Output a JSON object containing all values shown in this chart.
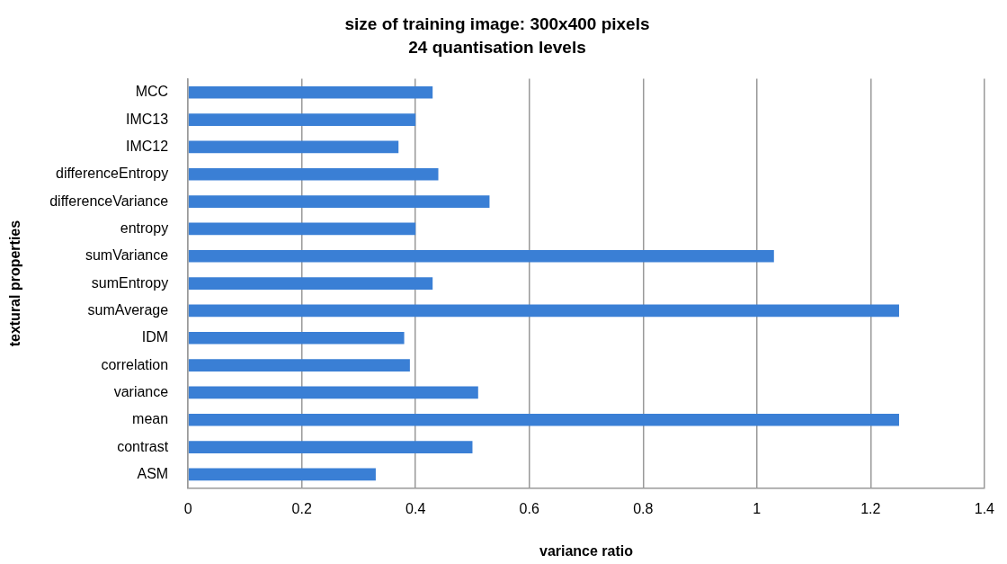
{
  "chart_data": {
    "type": "bar",
    "orientation": "horizontal",
    "title": "size of training image: 300x400 pixels",
    "subtitle": "24 quantisation levels",
    "xlabel": "variance ratio",
    "ylabel": "textural properties",
    "categories": [
      "MCC",
      "IMC13",
      "IMC12",
      "differenceEntropy",
      "differenceVariance",
      "entropy",
      "sumVariance",
      "sumEntropy",
      "sumAverage",
      "IDM",
      "correlation",
      "variance",
      "mean",
      "contrast",
      "ASM"
    ],
    "values": [
      0.43,
      0.4,
      0.37,
      0.44,
      0.53,
      0.4,
      1.03,
      0.43,
      1.25,
      0.38,
      0.39,
      0.51,
      1.25,
      0.5,
      0.33
    ],
    "color": "#3a7fd5",
    "xlim": [
      0,
      1.4
    ],
    "xticks": [
      0,
      0.2,
      0.4,
      0.6,
      0.8,
      1,
      1.2,
      1.4
    ],
    "grid": "x",
    "legend": false
  }
}
